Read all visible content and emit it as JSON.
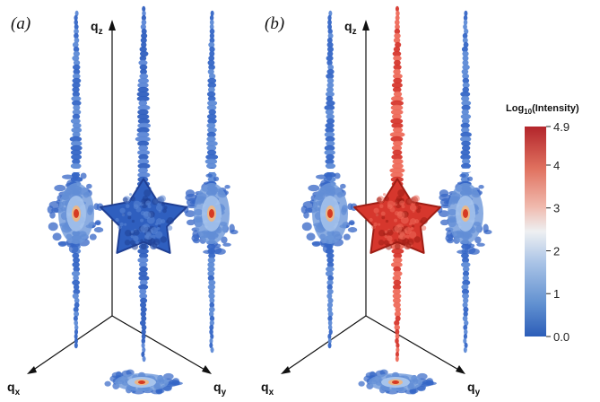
{
  "panels": [
    {
      "label": "(a)",
      "blob_color": "#2f5fbf",
      "blob_dark": "#1f3f94",
      "blob_light": "#5b86d6"
    },
    {
      "label": "(b)",
      "blob_color": "#d6372d",
      "blob_dark": "#9e1d14",
      "blob_light": "#ee6a5a"
    }
  ],
  "axes": {
    "qx": {
      "base": "q",
      "sub": "x"
    },
    "qy": {
      "base": "q",
      "sub": "y"
    },
    "qz": {
      "base": "q",
      "sub": "z"
    }
  },
  "colorbar": {
    "title": {
      "prefix": "Log",
      "sub": "10",
      "suffix": "(Intensity)"
    },
    "max": 4.9,
    "min": 0.0,
    "ticks": [
      "4.9",
      "4",
      "3",
      "2",
      "1",
      "0.0"
    ],
    "tick_values": [
      4.9,
      4,
      3,
      2,
      1,
      0
    ],
    "colors": [
      "#c1272d",
      "#e0715f",
      "#f0b9ad",
      "#eef0f2",
      "#a9c3e6",
      "#5f8fd0",
      "#2c5db8"
    ]
  },
  "projection_colors": {
    "outer": "#2f63c4",
    "mid": "#8cb4e6",
    "inner": "#e8b78a",
    "core": "#d63a22"
  }
}
